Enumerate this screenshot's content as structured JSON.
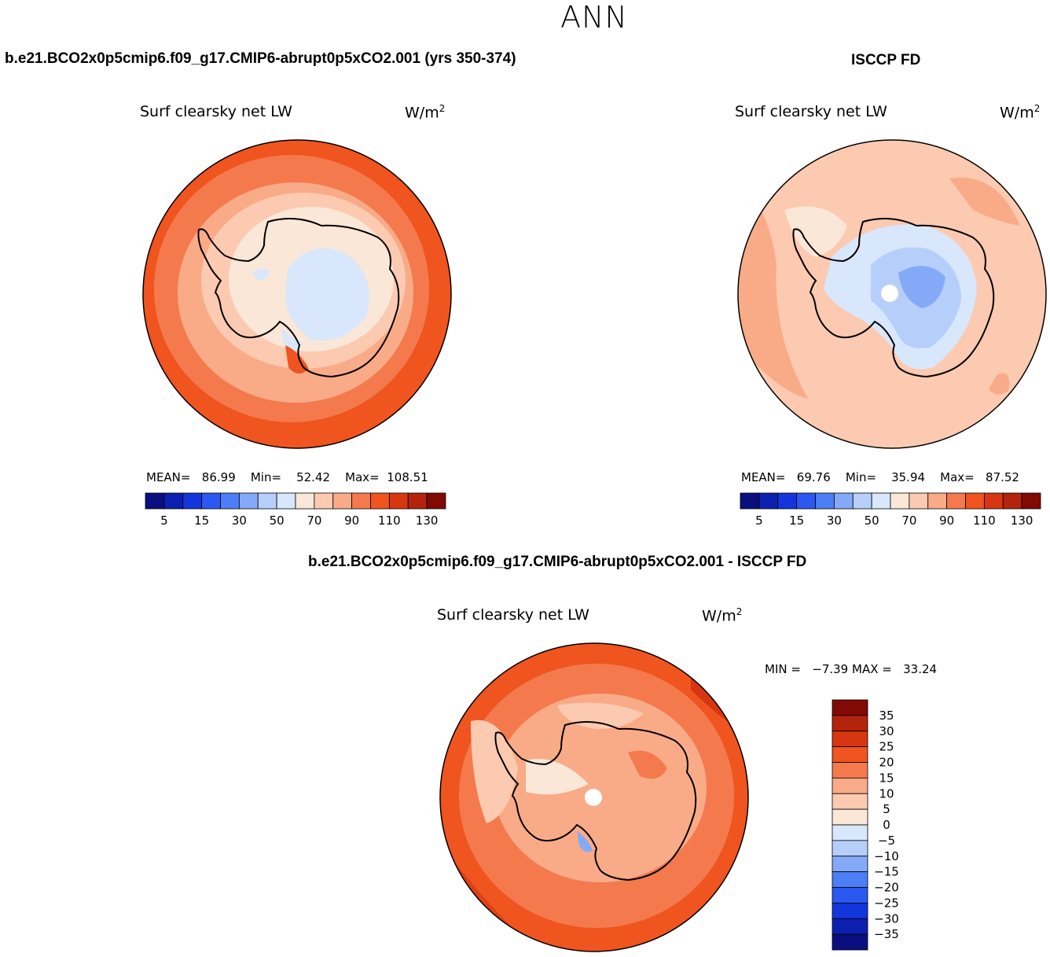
{
  "header": {
    "season": "ANN",
    "model_title": "b.e21.BCO2x0p5cmip6.f09_g17.CMIP6-abrupt0p5xCO2.001 (yrs 350-374)",
    "obs_title": "ISCCP FD",
    "diff_title": "b.e21.BCO2x0p5cmip6.f09_g17.CMIP6-abrupt0p5xCO2.001 - ISCCP FD"
  },
  "panels": {
    "model": {
      "label": "Surf clearsky net LW",
      "units": "W/m",
      "units_exp": "2",
      "stats": {
        "mean_label": "MEAN=",
        "mean": "86.99",
        "min_label": "Min=",
        "min": "52.42",
        "max_label": "Max=",
        "max": "108.51"
      }
    },
    "obs": {
      "label": "Surf clearsky net LW",
      "units": "W/m",
      "units_exp": "2",
      "stats": {
        "mean_label": "MEAN=",
        "mean": "69.76",
        "min_label": "Min=",
        "min": "35.94",
        "max_label": "Max=",
        "max": "87.52"
      }
    },
    "diff": {
      "label": "Surf clearsky net LW",
      "units": "W/m",
      "units_exp": "2",
      "stats": {
        "min_label": "MIN =",
        "min": "−7.39",
        "max_label": "MAX =",
        "max": "33.24"
      }
    }
  },
  "chart_data": [
    {
      "type": "heatmap",
      "title": "Surf clearsky net LW",
      "projection": "south polar stereographic",
      "units": "W/m^2",
      "stats": {
        "mean": 86.99,
        "min": 52.42,
        "max": 108.51
      },
      "levels": [
        5,
        10,
        15,
        20,
        30,
        40,
        50,
        60,
        70,
        80,
        90,
        100,
        110,
        120,
        130
      ],
      "colorbar_ticks": [
        "5",
        "15",
        "30",
        "50",
        "70",
        "90",
        "110",
        "130"
      ],
      "colors": [
        "#0a0f80",
        "#0c20b0",
        "#1235dc",
        "#2a58f0",
        "#4c7ef5",
        "#84aaf7",
        "#b6cffa",
        "#d8e7fb",
        "#fbe7d7",
        "#fbcab0",
        "#f9ab88",
        "#f47a4e",
        "#f0541f",
        "#d63711",
        "#b4230b",
        "#810a04"
      ]
    },
    {
      "type": "heatmap",
      "title": "Surf clearsky net LW",
      "projection": "south polar stereographic",
      "units": "W/m^2",
      "stats": {
        "mean": 69.76,
        "min": 35.94,
        "max": 87.52
      },
      "levels": [
        5,
        10,
        15,
        20,
        30,
        40,
        50,
        60,
        70,
        80,
        90,
        100,
        110,
        120,
        130
      ],
      "colorbar_ticks": [
        "5",
        "15",
        "30",
        "50",
        "70",
        "90",
        "110",
        "130"
      ],
      "colors": [
        "#0a0f80",
        "#0c20b0",
        "#1235dc",
        "#2a58f0",
        "#4c7ef5",
        "#84aaf7",
        "#b6cffa",
        "#d8e7fb",
        "#fbe7d7",
        "#fbcab0",
        "#f9ab88",
        "#f47a4e",
        "#f0541f",
        "#d63711",
        "#b4230b",
        "#810a04"
      ]
    },
    {
      "type": "heatmap",
      "title": "Surf clearsky net LW",
      "projection": "south polar stereographic",
      "units": "W/m^2",
      "stats": {
        "min": -7.39,
        "max": 33.24
      },
      "levels": [
        -35,
        -30,
        -25,
        -20,
        -15,
        -10,
        -5,
        0,
        5,
        10,
        15,
        20,
        25,
        30,
        35
      ],
      "colorbar_ticks": [
        "35",
        "30",
        "25",
        "20",
        "15",
        "10",
        "5",
        "0",
        "−5",
        "−10",
        "−15",
        "−20",
        "−25",
        "−30",
        "−35"
      ],
      "colors": [
        "#0a0f80",
        "#0c20b0",
        "#1235dc",
        "#2a58f0",
        "#4c7ef5",
        "#84aaf7",
        "#b6cffa",
        "#d8e7fb",
        "#fbe7d7",
        "#fbcab0",
        "#f9ab88",
        "#f47a4e",
        "#f0541f",
        "#d63711",
        "#b4230b",
        "#810a04"
      ]
    }
  ]
}
